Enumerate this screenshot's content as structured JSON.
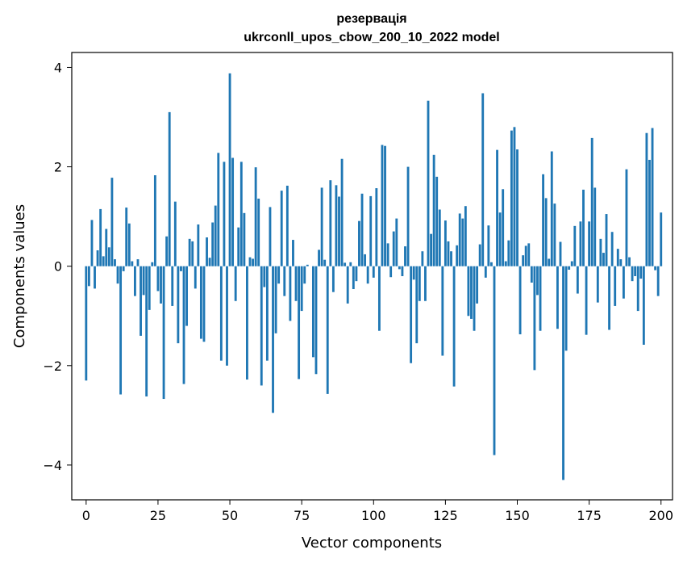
{
  "chart_data": {
    "type": "bar",
    "title_line1": "резервація",
    "title_line2": "ukrconll_upos_cbow_200_10_2022 model",
    "xlabel": "Vector components",
    "ylabel": "Components values",
    "xlim": [
      -5,
      204
    ],
    "ylim": [
      -4.7,
      4.3
    ],
    "xticks": [
      0,
      25,
      50,
      75,
      100,
      125,
      150,
      175,
      200
    ],
    "xtick_labels": [
      "0",
      "25",
      "50",
      "75",
      "100",
      "125",
      "150",
      "175",
      "200"
    ],
    "yticks": [
      4,
      2,
      0,
      -2,
      -4
    ],
    "ytick_labels": [
      "4",
      "2",
      "0",
      "−2",
      "−4"
    ],
    "bar_color": "#1f77b4",
    "values": [
      -2.3,
      -0.4,
      0.93,
      -0.45,
      0.32,
      1.15,
      0.2,
      0.75,
      0.38,
      1.78,
      0.14,
      -0.35,
      -2.58,
      -0.1,
      1.18,
      0.86,
      0.1,
      -0.6,
      0.14,
      -1.4,
      -0.58,
      -2.62,
      -0.88,
      0.08,
      1.83,
      -0.5,
      -0.75,
      -2.67,
      0.6,
      3.1,
      -0.8,
      1.3,
      -1.55,
      -0.1,
      -2.37,
      -1.2,
      0.55,
      0.5,
      -0.45,
      0.84,
      -1.46,
      -1.52,
      0.58,
      0.17,
      0.88,
      1.22,
      2.28,
      -1.9,
      2.1,
      -2.0,
      3.88,
      2.18,
      -0.7,
      0.78,
      2.1,
      1.07,
      -2.28,
      0.18,
      0.15,
      1.99,
      1.36,
      -2.4,
      -0.42,
      -1.9,
      1.19,
      -2.95,
      -1.35,
      -0.35,
      1.52,
      -0.6,
      1.62,
      -1.1,
      0.53,
      -0.7,
      -2.27,
      -0.9,
      -0.35,
      0.03,
      0.0,
      -1.83,
      -2.17,
      0.33,
      1.58,
      0.13,
      -2.57,
      1.73,
      -0.52,
      1.63,
      1.4,
      2.16,
      0.07,
      -0.75,
      0.08,
      -0.46,
      -0.3,
      0.91,
      1.46,
      0.24,
      -0.35,
      1.41,
      -0.23,
      1.57,
      -1.3,
      2.44,
      2.42,
      0.46,
      -0.22,
      0.7,
      0.96,
      -0.06,
      -0.2,
      0.4,
      2.0,
      -1.95,
      -0.27,
      -1.55,
      -0.7,
      0.3,
      -0.7,
      3.33,
      0.65,
      2.24,
      1.8,
      1.14,
      -1.8,
      0.92,
      0.5,
      0.3,
      -2.42,
      0.42,
      1.06,
      0.96,
      1.21,
      -1.0,
      -1.06,
      -1.3,
      -0.75,
      0.44,
      3.48,
      -0.23,
      0.82,
      0.08,
      -3.8,
      2.34,
      1.08,
      1.55,
      0.1,
      0.52,
      2.73,
      2.8,
      2.35,
      -1.37,
      0.22,
      0.41,
      0.46,
      -0.33,
      -2.09,
      -0.58,
      -1.3,
      1.85,
      1.37,
      0.15,
      2.31,
      1.26,
      -1.26,
      0.49,
      -4.3,
      -1.7,
      -0.07,
      0.1,
      0.81,
      -0.55,
      0.9,
      1.54,
      -1.38,
      0.9,
      2.58,
      1.58,
      -0.73,
      0.55,
      0.27,
      1.05,
      -1.28,
      0.69,
      -0.8,
      0.35,
      0.14,
      -0.65,
      1.95,
      0.18,
      -0.3,
      -0.2,
      -0.9,
      -0.25,
      -1.58,
      2.68,
      2.14,
      2.78,
      -0.08,
      -0.6,
      1.08
    ]
  }
}
